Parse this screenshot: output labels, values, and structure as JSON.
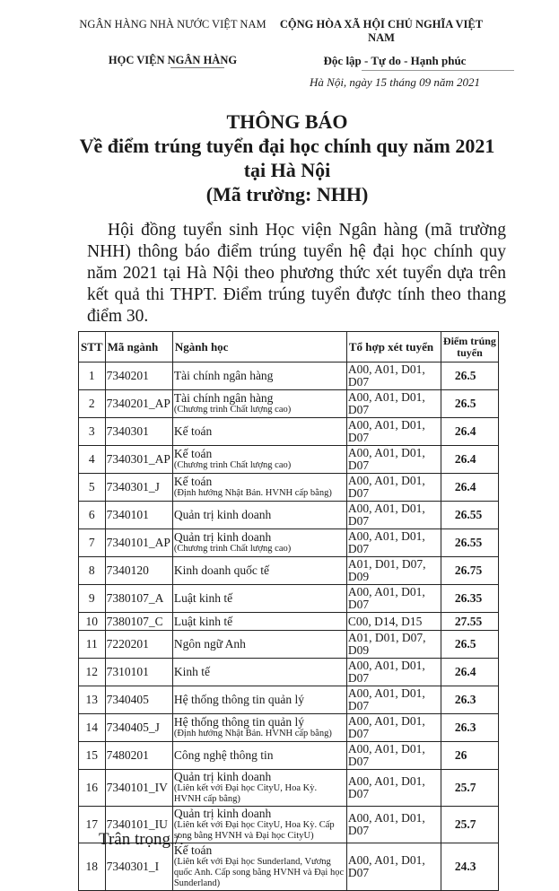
{
  "header": {
    "org_parent": "NGÂN HÀNG NHÀ NƯỚC VIỆT NAM",
    "org": "HỌC VIỆN NGÂN HÀNG",
    "country": "CỘNG HÒA XÃ HỘI CHỦ NGHĨA VIỆT NAM",
    "motto": "Độc lập - Tự do - Hạnh phúc",
    "date": "Hà Nội, ngày 15 tháng 09 năm 2021"
  },
  "title": {
    "line1": "THÔNG BÁO",
    "line2": "Về điểm trúng tuyển đại học chính quy năm 2021",
    "line3": "tại Hà Nội",
    "line4": "(Mã trường: NHH)"
  },
  "body": "Hội đồng tuyển sinh Học viện Ngân hàng (mã trường NHH) thông báo điểm trúng tuyển hệ đại học chính quy năm 2021 tại Hà Nội theo phương thức xét tuyển dựa trên kết quả thi THPT. Điểm trúng tuyển được tính theo thang điểm 30.",
  "table": {
    "headers": [
      "STT",
      "Mã ngành",
      "Ngành học",
      "Tổ hợp xét tuyển",
      "Điểm trúng tuyển"
    ],
    "rows": [
      {
        "stt": "1",
        "code": "7340201",
        "major": "Tài chính ngân hàng",
        "note": "",
        "combo": "A00, A01, D01, D07",
        "score": "26.5"
      },
      {
        "stt": "2",
        "code": "7340201_AP",
        "major": "Tài chính ngân hàng",
        "note": "(Chương trình Chất lượng cao)",
        "combo": "A00, A01, D01, D07",
        "score": "26.5"
      },
      {
        "stt": "3",
        "code": "7340301",
        "major": "Kế toán",
        "note": "",
        "combo": "A00, A01, D01, D07",
        "score": "26.4"
      },
      {
        "stt": "4",
        "code": "7340301_AP",
        "major": "Kế toán",
        "note": "(Chương trình Chất lượng cao)",
        "combo": "A00, A01, D01, D07",
        "score": "26.4"
      },
      {
        "stt": "5",
        "code": "7340301_J",
        "major": "Kế toán",
        "note": "(Định hướng Nhật Bản. HVNH cấp bằng)",
        "combo": "A00, A01, D01, D07",
        "score": "26.4"
      },
      {
        "stt": "6",
        "code": "7340101",
        "major": "Quản trị kinh doanh",
        "note": "",
        "combo": "A00, A01, D01, D07",
        "score": "26.55"
      },
      {
        "stt": "7",
        "code": "7340101_AP",
        "major": "Quản trị kinh doanh",
        "note": "(Chương trình Chất lượng cao)",
        "combo": "A00, A01, D01, D07",
        "score": "26.55"
      },
      {
        "stt": "8",
        "code": "7340120",
        "major": "Kinh doanh quốc tế",
        "note": "",
        "combo": "A01, D01, D07, D09",
        "score": "26.75"
      },
      {
        "stt": "9",
        "code": "7380107_A",
        "major": "Luật kinh tế",
        "note": "",
        "combo": "A00, A01, D01, D07",
        "score": "26.35"
      },
      {
        "stt": "10",
        "code": "7380107_C",
        "major": "Luật kinh tế",
        "note": "",
        "combo": "C00, D14, D15",
        "score": "27.55"
      },
      {
        "stt": "11",
        "code": "7220201",
        "major": "Ngôn ngữ Anh",
        "note": "",
        "combo": "A01, D01, D07, D09",
        "score": "26.5"
      },
      {
        "stt": "12",
        "code": "7310101",
        "major": "Kinh tế",
        "note": "",
        "combo": "A00, A01, D01, D07",
        "score": "26.4"
      },
      {
        "stt": "13",
        "code": "7340405",
        "major": "Hệ thống thông tin quản lý",
        "note": "",
        "combo": "A00, A01, D01, D07",
        "score": "26.3"
      },
      {
        "stt": "14",
        "code": "7340405_J",
        "major": "Hệ thống thông tin quản lý",
        "note": "(Định hướng Nhật Bản. HVNH cấp bằng)",
        "combo": "A00, A01, D01, D07",
        "score": "26.3"
      },
      {
        "stt": "15",
        "code": "7480201",
        "major": "Công nghệ thông tin",
        "note": "",
        "combo": "A00, A01, D01, D07",
        "score": "26"
      },
      {
        "stt": "16",
        "code": "7340101_IV",
        "major": "Quản trị kinh doanh",
        "note": "(Liên kết với Đại học CityU, Hoa Kỳ. HVNH cấp bằng)",
        "combo": "A00, A01, D01, D07",
        "score": "25.7"
      },
      {
        "stt": "17",
        "code": "7340101_IU",
        "major": "Quản trị kinh doanh",
        "note": "(Liên kết với Đại học CityU, Hoa Kỳ. Cấp song bằng HVNH và Đại học CityU)",
        "combo": "A00, A01, D01, D07",
        "score": "25.7"
      },
      {
        "stt": "18",
        "code": "7340301_I",
        "major": "Kế toán",
        "note": "(Liên kết với Đại học Sunderland, Vương quốc Anh. Cấp song bằng HVNH và Đại học Sunderland)",
        "combo": "A00, A01, D01, D07",
        "score": "24.3"
      }
    ]
  },
  "closing": "Trân trọng./."
}
